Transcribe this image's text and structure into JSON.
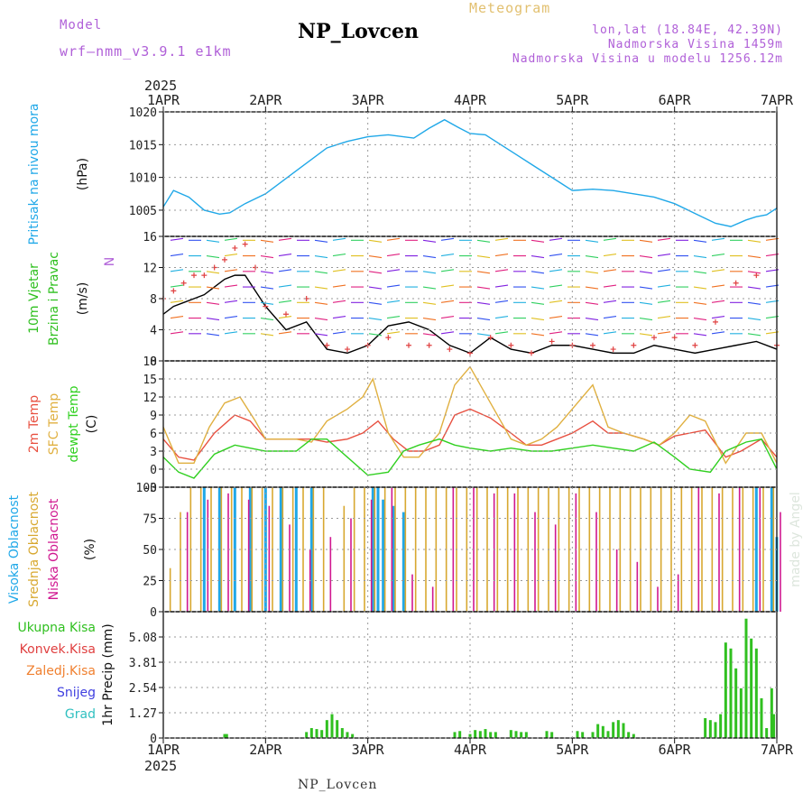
{
  "header": {
    "station": "NP_Lovcen",
    "meteogram_label": "Meteogram",
    "model_label": "Model",
    "model_name": "wrf–nmm_v3.9.1 e1km",
    "info_lines": [
      "lon,lat (18.84E, 42.39N)",
      "Nadmorska Visina 1459m",
      "Nadmorska Visina u modelu 1256.12m"
    ],
    "footer_station": "NP_Lovcen",
    "watermark": "made by Angel"
  },
  "time_axis": {
    "year": "2025",
    "labels": [
      "1APR",
      "2APR",
      "3APR",
      "4APR",
      "5APR",
      "6APR",
      "7APR"
    ]
  },
  "colors": {
    "pressure": "#20a8e8",
    "temp2m": "#e85040",
    "temp_sfc": "#e0b040",
    "dewpoint": "#30d020",
    "cloud_high": "#20a8e8",
    "cloud_mid": "#d8a830",
    "cloud_low": "#d01890",
    "precip_total": "#30c020",
    "precip_conv": "#e04040",
    "precip_frozen": "#f08030",
    "snow": "#4040e0",
    "hail": "#30c0c0",
    "wind_speed": "#000000",
    "wind_gust": "#e04040"
  },
  "chart_data": [
    {
      "type": "line",
      "panel": "pressure",
      "ylabel_lines": [
        "Pritisak na nivou mora",
        "(hPa)"
      ],
      "ylim": [
        1001,
        1020
      ],
      "yticks": [
        1005,
        1010,
        1015,
        1020
      ],
      "grid": true,
      "series": [
        {
          "x": [
            0,
            0.1,
            0.25,
            0.4,
            0.55,
            0.65,
            0.8,
            1.0,
            1.3,
            1.6,
            1.8,
            2.0,
            2.2,
            2.45,
            2.6,
            2.75,
            2.9,
            3.0,
            3.15,
            3.3,
            3.45,
            3.6,
            3.75,
            3.9,
            4.0,
            4.2,
            4.4,
            4.6,
            4.8,
            5.0,
            5.2,
            5.4,
            5.55,
            5.7,
            5.8,
            5.9,
            6.0
          ],
          "y": [
            1005.5,
            1008,
            1007,
            1005,
            1004.4,
            1004.6,
            1006,
            1007.5,
            1011,
            1014.5,
            1015.5,
            1016.2,
            1016.5,
            1016,
            1017.5,
            1018.8,
            1017.5,
            1016.7,
            1016.5,
            1015,
            1013.5,
            1012,
            1010.5,
            1009,
            1008,
            1008.2,
            1008,
            1007.5,
            1007,
            1006,
            1004.5,
            1003,
            1002.5,
            1003.5,
            1004,
            1004.3,
            1005.3
          ]
        }
      ]
    },
    {
      "type": "line",
      "panel": "wind",
      "ylabel_lines": [
        "10m Vjetar",
        "Brzina i Pravac",
        "(m/s)"
      ],
      "compass_label": "N",
      "ylim": [
        0,
        16
      ],
      "yticks": [
        0,
        4,
        8,
        12,
        16
      ],
      "grid": true,
      "series": [
        {
          "name": "speed",
          "x": [
            0,
            0.1,
            0.2,
            0.3,
            0.4,
            0.5,
            0.6,
            0.7,
            0.8,
            0.9,
            1.0,
            1.2,
            1.4,
            1.6,
            1.8,
            2.0,
            2.2,
            2.4,
            2.6,
            2.8,
            3.0,
            3.2,
            3.4,
            3.6,
            3.8,
            4.0,
            4.2,
            4.4,
            4.6,
            4.8,
            5.0,
            5.2,
            5.4,
            5.6,
            5.8,
            6.0
          ],
          "y": [
            6,
            7,
            7.5,
            8,
            8.5,
            9.5,
            10.5,
            11,
            11,
            9,
            7,
            4,
            5,
            1.5,
            1,
            2,
            4.5,
            5,
            4,
            2,
            1,
            3,
            1.5,
            1,
            2,
            2,
            1.5,
            1,
            1,
            2,
            1.5,
            1,
            1.5,
            2,
            2.5,
            1.5
          ]
        },
        {
          "name": "gust",
          "x": [
            0,
            0.1,
            0.2,
            0.3,
            0.4,
            0.5,
            0.6,
            0.7,
            0.8,
            0.9,
            1.0,
            1.2,
            1.4,
            1.6,
            1.8,
            2.0,
            2.2,
            2.4,
            2.6,
            2.8,
            3.0,
            3.2,
            3.4,
            3.6,
            3.8,
            4.0,
            4.2,
            4.4,
            4.6,
            4.8,
            5.0,
            5.2,
            5.4,
            5.6,
            5.8,
            6.0
          ],
          "y": [
            8,
            9,
            10,
            11,
            11,
            12,
            13,
            14.5,
            15,
            12,
            7,
            6,
            8,
            2,
            1.5,
            2,
            3,
            2,
            2,
            1.5,
            1,
            3,
            2,
            1,
            2.5,
            2,
            2,
            1.5,
            2,
            3,
            3,
            2,
            5,
            10,
            11,
            2
          ]
        }
      ]
    },
    {
      "type": "line",
      "panel": "temperature",
      "ylabel_lines": [
        "2m Temp",
        "SFC Temp",
        "dewpt Temp",
        "(C)"
      ],
      "ylim": [
        -3,
        18
      ],
      "yticks": [
        -3,
        0,
        3,
        6,
        9,
        12,
        15,
        18
      ],
      "grid": true,
      "series": [
        {
          "name": "2m Temp",
          "x": [
            0,
            0.15,
            0.3,
            0.5,
            0.7,
            0.85,
            1.0,
            1.2,
            1.3,
            1.45,
            1.6,
            1.8,
            1.95,
            2.1,
            2.25,
            2.4,
            2.55,
            2.7,
            2.85,
            3.0,
            3.2,
            3.4,
            3.55,
            3.7,
            3.85,
            4.0,
            4.2,
            4.35,
            4.5,
            4.7,
            4.85,
            5.0,
            5.15,
            5.3,
            5.5,
            5.65,
            5.85,
            6.0
          ],
          "y": [
            5,
            2,
            1.5,
            6,
            9,
            8,
            5,
            5,
            5,
            5,
            4.5,
            5,
            6,
            8,
            5,
            3,
            3,
            4,
            9,
            10,
            8.5,
            6,
            4,
            4,
            5,
            6,
            8,
            6,
            6,
            5,
            4,
            5.5,
            6,
            6.5,
            2,
            3,
            5,
            2
          ]
        },
        {
          "name": "SFC Temp",
          "x": [
            0,
            0.15,
            0.3,
            0.45,
            0.6,
            0.75,
            0.9,
            1.0,
            1.2,
            1.3,
            1.45,
            1.6,
            1.8,
            1.95,
            2.05,
            2.2,
            2.35,
            2.5,
            2.7,
            2.85,
            3.0,
            3.2,
            3.4,
            3.55,
            3.7,
            3.85,
            4.0,
            4.2,
            4.35,
            4.5,
            4.7,
            4.85,
            5.0,
            5.15,
            5.3,
            5.5,
            5.7,
            5.85,
            6.0
          ],
          "y": [
            7,
            1,
            1,
            7,
            11,
            12,
            8,
            5,
            5,
            5,
            4.5,
            8,
            10,
            12,
            15,
            6,
            2,
            2,
            6,
            14,
            17,
            11,
            5,
            4,
            5,
            7,
            10,
            14,
            7,
            6,
            5,
            4,
            6,
            9,
            8,
            1,
            6,
            6,
            1
          ]
        },
        {
          "name": "dewpt Temp",
          "x": [
            0,
            0.15,
            0.3,
            0.5,
            0.7,
            0.85,
            1.0,
            1.2,
            1.3,
            1.45,
            1.6,
            1.8,
            2.0,
            2.2,
            2.35,
            2.5,
            2.7,
            2.85,
            3.0,
            3.2,
            3.4,
            3.6,
            3.8,
            4.0,
            4.2,
            4.4,
            4.6,
            4.8,
            5.0,
            5.15,
            5.35,
            5.5,
            5.7,
            5.85,
            6.0
          ],
          "y": [
            2,
            -0.5,
            -1.5,
            2.5,
            4,
            3.5,
            3,
            3,
            3,
            5,
            5,
            2,
            -1,
            -0.5,
            3,
            4,
            5,
            4,
            3.5,
            3,
            3.5,
            3,
            3,
            3.5,
            4,
            3.5,
            3,
            4.5,
            2,
            0,
            -0.5,
            3,
            4.5,
            5,
            0
          ]
        }
      ]
    },
    {
      "type": "bar",
      "panel": "clouds",
      "ylabel_lines": [
        "Visoka Oblacnost",
        "Srednja Oblacnost",
        "Niska Oblacnost",
        "(%)"
      ],
      "ylim": [
        0,
        100
      ],
      "yticks": [
        0,
        25,
        50,
        75,
        100
      ],
      "grid": true,
      "series": [
        {
          "name": "Visoka Oblacnost",
          "x": [
            0.4,
            0.55,
            0.7,
            0.85,
            1.0,
            1.15,
            1.3,
            1.45,
            2.05,
            2.1,
            2.15,
            2.25,
            2.35,
            5.8,
            5.95,
            6.0
          ],
          "y": [
            100,
            100,
            100,
            100,
            100,
            100,
            100,
            100,
            100,
            100,
            90,
            85,
            80,
            100,
            100,
            60
          ]
        },
        {
          "name": "Srednja Oblacnost",
          "x": [
            0.05,
            0.15,
            0.25,
            0.35,
            0.45,
            0.55,
            0.65,
            0.75,
            0.85,
            0.95,
            1.05,
            1.15,
            1.25,
            1.35,
            1.45,
            1.55,
            1.75,
            1.85,
            1.95,
            2.05,
            2.15,
            2.25,
            2.35,
            2.45,
            2.55,
            2.65,
            2.75,
            2.85,
            2.95,
            3.05,
            3.15,
            3.25,
            3.35,
            3.45,
            3.55,
            3.65,
            3.75,
            3.85,
            3.95,
            4.05,
            4.15,
            4.25,
            4.35,
            4.45,
            4.55,
            4.65,
            4.75,
            4.85,
            4.95,
            5.05,
            5.15,
            5.25,
            5.35,
            5.45,
            5.55,
            5.65,
            5.75,
            5.85,
            5.95
          ],
          "y": [
            35,
            80,
            100,
            100,
            100,
            100,
            100,
            100,
            100,
            100,
            100,
            100,
            100,
            100,
            100,
            100,
            85,
            100,
            100,
            100,
            100,
            100,
            100,
            100,
            100,
            100,
            100,
            100,
            100,
            100,
            100,
            100,
            100,
            100,
            100,
            100,
            100,
            100,
            100,
            100,
            100,
            100,
            100,
            100,
            100,
            100,
            100,
            100,
            100,
            100,
            100,
            100,
            100,
            100,
            100,
            100,
            100,
            100,
            100
          ]
        },
        {
          "name": "Niska Oblacnost",
          "x": [
            0.2,
            0.4,
            0.6,
            0.8,
            1.0,
            1.2,
            1.4,
            1.6,
            1.8,
            2.0,
            2.2,
            2.4,
            2.6,
            2.8,
            3.0,
            3.2,
            3.4,
            3.6,
            3.8,
            4.0,
            4.2,
            4.4,
            4.6,
            4.8,
            5.0,
            5.2,
            5.4,
            5.6,
            5.8,
            6.0
          ],
          "y": [
            80,
            90,
            95,
            90,
            85,
            70,
            50,
            60,
            75,
            90,
            100,
            30,
            20,
            100,
            100,
            95,
            95,
            80,
            70,
            95,
            80,
            50,
            40,
            20,
            30,
            100,
            95,
            100,
            100,
            80
          ]
        }
      ]
    },
    {
      "type": "bar",
      "panel": "precip",
      "legend": [
        "Ukupna Kisa",
        "Konvek.Kisa",
        "Zaledj.Kisa",
        "Snijeg",
        "Grad"
      ],
      "ylabel": "1hr Precip (mm)",
      "ylim": [
        0,
        6.35
      ],
      "yticks": [
        0,
        1.27,
        2.54,
        3.81,
        5.08
      ],
      "grid": true,
      "series": [
        {
          "name": "Ukupna Kisa",
          "x": [
            0.6,
            0.62,
            1.4,
            1.45,
            1.5,
            1.55,
            1.6,
            1.65,
            1.7,
            1.75,
            1.8,
            1.85,
            2.85,
            2.9,
            3.0,
            3.05,
            3.1,
            3.15,
            3.2,
            3.25,
            3.4,
            3.45,
            3.5,
            3.55,
            3.75,
            3.8,
            4.05,
            4.1,
            4.2,
            4.25,
            4.3,
            4.35,
            4.4,
            4.45,
            4.5,
            4.55,
            4.6,
            5.3,
            5.35,
            5.4,
            5.45,
            5.5,
            5.55,
            5.6,
            5.65,
            5.7,
            5.75,
            5.8,
            5.85,
            5.9,
            5.95,
            5.97
          ],
          "y": [
            0.2,
            0.2,
            0.3,
            0.5,
            0.45,
            0.4,
            0.9,
            1.2,
            0.9,
            0.5,
            0.3,
            0.2,
            0.3,
            0.35,
            0.2,
            0.4,
            0.35,
            0.45,
            0.3,
            0.3,
            0.4,
            0.35,
            0.3,
            0.3,
            0.35,
            0.3,
            0.35,
            0.3,
            0.3,
            0.7,
            0.6,
            0.35,
            0.8,
            0.9,
            0.75,
            0.3,
            0.2,
            1.0,
            0.9,
            0.8,
            1.2,
            4.8,
            4.5,
            3.5,
            2.5,
            6.0,
            5.0,
            4.5,
            2.0,
            0.5,
            2.5,
            1.2
          ]
        }
      ]
    }
  ]
}
